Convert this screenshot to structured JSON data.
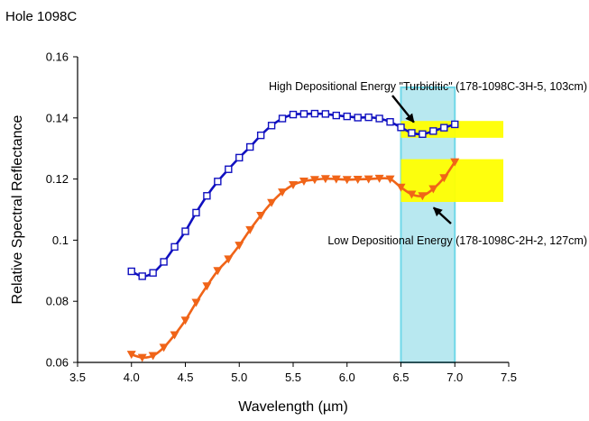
{
  "page": {
    "title": "Hole 1098C"
  },
  "chart_data": {
    "type": "line",
    "xlabel": "Wavelength (µm)",
    "ylabel": "Relative Spectral Reflectance",
    "xlim": [
      3.5,
      7.5
    ],
    "ylim": [
      0.06,
      0.16
    ],
    "xticks": [
      3.5,
      4.0,
      4.5,
      5.0,
      5.5,
      6.0,
      6.5,
      7.0,
      7.5
    ],
    "xtick_labels": [
      "3.5",
      "4.0",
      "4.5",
      "5.0",
      "5.5",
      "6.0",
      "6.5",
      "7.0",
      "7.5"
    ],
    "yticks": [
      0.06,
      0.08,
      0.1,
      0.12,
      0.14,
      0.16
    ],
    "ytick_labels": [
      "0.06",
      "0.08",
      "0.1",
      "0.12",
      "0.14",
      "0.16"
    ],
    "grid": false,
    "series": [
      {
        "color": "#1010c0",
        "marker": "square",
        "x": [
          4.0,
          4.1,
          4.2,
          4.3,
          4.4,
          4.5,
          4.6,
          4.7,
          4.8,
          4.9,
          5.0,
          5.1,
          5.2,
          5.3,
          5.4,
          5.5,
          5.6,
          5.7,
          5.8,
          5.9,
          6.0,
          6.1,
          6.2,
          6.3,
          6.4,
          6.5,
          6.6,
          6.7,
          6.8,
          6.9,
          7.0
        ],
        "y": [
          0.0898,
          0.0882,
          0.0893,
          0.0929,
          0.0978,
          0.1029,
          0.109,
          0.1145,
          0.1192,
          0.1232,
          0.127,
          0.1305,
          0.1343,
          0.1375,
          0.1398,
          0.1411,
          0.1413,
          0.1414,
          0.1413,
          0.1408,
          0.1405,
          0.1401,
          0.1402,
          0.1398,
          0.1387,
          0.1369,
          0.1351,
          0.1347,
          0.1357,
          0.1368,
          0.1379
        ]
      },
      {
        "color": "#f06418",
        "marker": "triangle-down",
        "x": [
          4.0,
          4.1,
          4.2,
          4.3,
          4.4,
          4.5,
          4.6,
          4.7,
          4.8,
          4.9,
          5.0,
          5.1,
          5.2,
          5.3,
          5.4,
          5.5,
          5.6,
          5.7,
          5.8,
          5.9,
          6.0,
          6.1,
          6.2,
          6.3,
          6.4,
          6.5,
          6.6,
          6.7,
          6.8,
          6.9,
          7.0
        ],
        "y": [
          0.0626,
          0.0616,
          0.0622,
          0.0649,
          0.069,
          0.0738,
          0.0796,
          0.085,
          0.09,
          0.0938,
          0.0983,
          0.1034,
          0.1081,
          0.1123,
          0.1157,
          0.1181,
          0.1193,
          0.1198,
          0.1201,
          0.12,
          0.1198,
          0.1199,
          0.12,
          0.1202,
          0.12,
          0.1173,
          0.115,
          0.1145,
          0.1168,
          0.1204,
          0.1256
        ]
      }
    ],
    "shaded_regions": [
      {
        "kind": "vertical-band",
        "x": [
          6.5,
          7.0
        ],
        "color": "#b8e8f0",
        "edge": "#70d8e8"
      },
      {
        "kind": "box",
        "x": [
          6.5,
          7.45
        ],
        "y": [
          0.1335,
          0.139
        ],
        "color": "#ffff00"
      },
      {
        "kind": "box",
        "x": [
          6.5,
          7.45
        ],
        "y": [
          0.1125,
          0.1265
        ],
        "color": "#ffff00"
      }
    ],
    "annotations": [
      {
        "text": "High Depositional Energy \"Turbiditic\" (178-1098C-3H-5, 103cm)",
        "arrow_to": [
          6.62,
          0.1368
        ]
      },
      {
        "text": "Low Depositional Energy (178-1098C-2H-2, 127cm)",
        "arrow_to": [
          6.77,
          0.113
        ]
      }
    ]
  }
}
